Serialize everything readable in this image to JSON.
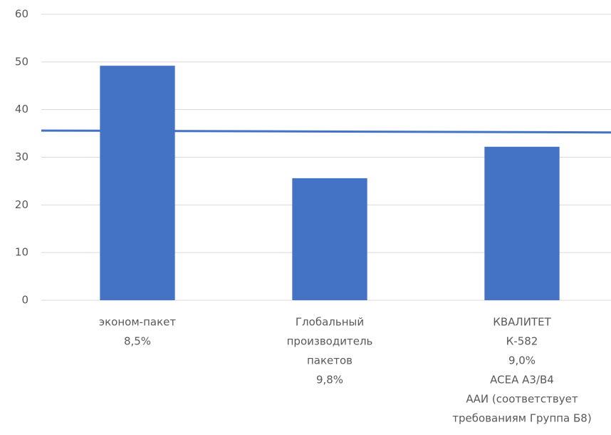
{
  "chart_data": {
    "type": "bar",
    "categories": [
      [
        "эконом-пакет",
        "8,5%"
      ],
      [
        "Глобальный",
        "производитель",
        "пакетов",
        "9,8%"
      ],
      [
        "КВАЛИТЕТ",
        "К-582",
        "9,0%",
        "ACEA A3/B4",
        "ААИ (соответствует",
        "требованиям Группа Б8)"
      ]
    ],
    "values": [
      49.2,
      25.6,
      32.2
    ],
    "color": "#4472c4",
    "trend_line": {
      "values": [
        35.6,
        35.2
      ],
      "color": "#4472c4"
    },
    "ylim": [
      0,
      60
    ],
    "yticks": [
      0,
      10,
      20,
      30,
      40,
      50,
      60
    ],
    "grid": true
  }
}
